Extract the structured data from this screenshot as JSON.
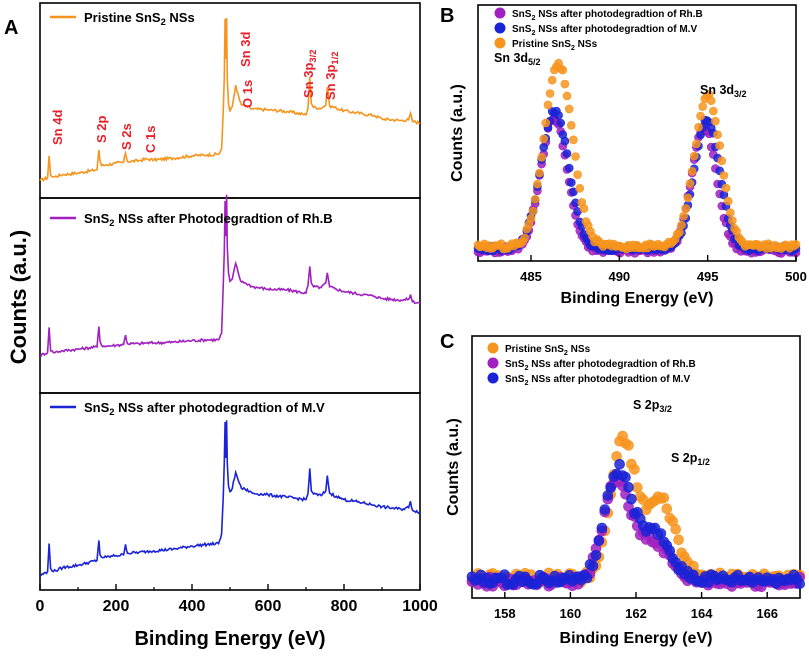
{
  "colors": {
    "pristine": "#f7941d",
    "rhb": "#a020c0",
    "mv": "#1a23d6",
    "label_red": "#e8202a",
    "axis": "#000000"
  },
  "chart_data": [
    {
      "panel": "A",
      "type": "line",
      "title": "",
      "xlabel": "Binding Energy (eV)",
      "ylabel": "Counts (a.u.)",
      "xlim": [
        0,
        1000
      ],
      "xticks": [
        0,
        200,
        400,
        600,
        800,
        1000
      ],
      "grid": false,
      "stacked": true,
      "series": [
        {
          "name": "Pristine SnS2 NSs",
          "legend_main": "Pristine SnS",
          "legend_sub": "2",
          "legend_tail": " NSs",
          "color": "#f7941d",
          "x": [
            0,
            20,
            24,
            28,
            35,
            60,
            100,
            150,
            155,
            158,
            162,
            175,
            200,
            220,
            225,
            230,
            260,
            280,
            300,
            350,
            400,
            440,
            470,
            478,
            482,
            485,
            487,
            489,
            491,
            493,
            496,
            500,
            506,
            515,
            525,
            530,
            540,
            560,
            600,
            650,
            700,
            705,
            710,
            714,
            720,
            740,
            752,
            756,
            762,
            780,
            800,
            850,
            880,
            900,
            950,
            970,
            975,
            980,
            1000
          ],
          "y": [
            0.2,
            0.5,
            3.2,
            0.8,
            0.6,
            0.9,
            1.1,
            1.5,
            3.9,
            2.6,
            2.0,
            2.1,
            2.3,
            2.4,
            3.5,
            2.5,
            2.6,
            2.8,
            2.7,
            2.9,
            3.2,
            3.3,
            3.4,
            4.0,
            8.5,
            12.8,
            19.9,
            15.0,
            20.0,
            12.5,
            9.5,
            8.6,
            9.2,
            11.8,
            10.0,
            9.4,
            9.3,
            8.9,
            8.8,
            8.6,
            8.2,
            9.0,
            12.8,
            9.6,
            9.1,
            9.0,
            9.4,
            11.6,
            9.3,
            9.0,
            8.7,
            8.3,
            8.1,
            7.7,
            7.5,
            7.6,
            8.4,
            7.4,
            7.2
          ]
        },
        {
          "name": "SnS2 NSs after Photodegradtion of Rh.B",
          "legend_main": "SnS",
          "legend_sub": "2",
          "legend_tail": " NSs after Photodegradtion of Rh.B",
          "color": "#a020c0",
          "x": [
            0,
            20,
            24,
            28,
            35,
            60,
            100,
            150,
            155,
            158,
            162,
            175,
            200,
            220,
            225,
            230,
            260,
            280,
            300,
            350,
            400,
            440,
            470,
            478,
            482,
            485,
            487,
            489,
            491,
            493,
            496,
            500,
            506,
            515,
            525,
            530,
            540,
            560,
            600,
            650,
            700,
            705,
            710,
            714,
            720,
            740,
            752,
            756,
            762,
            780,
            800,
            850,
            880,
            900,
            950,
            970,
            975,
            980,
            1000
          ],
          "y": [
            0.2,
            0.6,
            3.8,
            0.8,
            0.6,
            0.8,
            1.0,
            1.3,
            3.9,
            2.0,
            1.5,
            1.4,
            1.5,
            1.6,
            2.8,
            1.7,
            1.7,
            1.8,
            1.8,
            1.9,
            2.1,
            2.2,
            2.2,
            3.0,
            9.0,
            13.5,
            20.0,
            15.5,
            20.8,
            14.0,
            10.8,
            9.7,
            10.0,
            12.0,
            10.2,
            9.6,
            9.5,
            9.0,
            8.7,
            8.6,
            8.2,
            9.1,
            11.6,
            9.5,
            9.0,
            8.9,
            9.5,
            10.8,
            9.0,
            8.7,
            8.4,
            8.0,
            7.8,
            7.5,
            7.3,
            7.4,
            8.0,
            7.1,
            6.9
          ]
        },
        {
          "name": "SnS2 NSs after photodegradtion of M.V",
          "legend_main": "SnS",
          "legend_sub": "2",
          "legend_tail": " NSs after photodegradtion of M.V",
          "color": "#1a23d6",
          "x": [
            0,
            20,
            24,
            28,
            35,
            60,
            100,
            150,
            155,
            158,
            162,
            175,
            200,
            220,
            225,
            230,
            260,
            280,
            300,
            350,
            400,
            440,
            470,
            478,
            482,
            485,
            487,
            489,
            491,
            493,
            496,
            500,
            506,
            515,
            525,
            530,
            540,
            560,
            600,
            650,
            700,
            705,
            710,
            714,
            720,
            740,
            752,
            756,
            762,
            780,
            800,
            850,
            880,
            900,
            950,
            970,
            975,
            980,
            1000
          ],
          "y": [
            0.3,
            0.8,
            4.3,
            1.2,
            0.8,
            1.3,
            1.6,
            2.2,
            4.7,
            2.9,
            2.6,
            2.6,
            2.8,
            2.9,
            4.2,
            3.1,
            3.2,
            3.3,
            3.4,
            3.6,
            4.0,
            4.2,
            4.3,
            5.5,
            10.0,
            14.5,
            19.5,
            15.0,
            19.7,
            14.3,
            11.5,
            10.8,
            11.2,
            13.2,
            11.8,
            11.2,
            11.1,
            10.6,
            10.4,
            10.1,
            9.8,
            10.5,
            13.7,
            10.9,
            10.5,
            10.3,
            10.9,
            12.8,
            10.6,
            10.2,
            9.8,
            9.4,
            9.1,
            8.9,
            8.6,
            8.8,
            9.6,
            8.5,
            8.2
          ]
        }
      ],
      "annotations": [
        {
          "main": "Sn 4d",
          "sub": ""
        },
        {
          "main": "S 2p",
          "sub": ""
        },
        {
          "main": "S 2s",
          "sub": ""
        },
        {
          "main": "C 1s",
          "sub": ""
        },
        {
          "main": "Sn 3d",
          "sub": ""
        },
        {
          "main": "O 1s",
          "sub": ""
        },
        {
          "main": "Sn 3p",
          "sub": "3/2"
        },
        {
          "main": "Sn 3p",
          "sub": "1/2"
        }
      ]
    },
    {
      "panel": "B",
      "type": "scatter",
      "title": "",
      "xlabel": "Binding Energy (eV)",
      "ylabel": "Counts (a.u.)",
      "xlim": [
        482,
        500
      ],
      "xticks": [
        485,
        490,
        495,
        500
      ],
      "grid": false,
      "legend_position": "top-right",
      "series": [
        {
          "name": "SnS2 NSs after photodegradtion of Rh.B",
          "legend_main": "SnS",
          "legend_sub": "2",
          "legend_tail": " NSs after photodegradtion of Rh.B",
          "color": "#a020c0",
          "peaks": [
            {
              "center": 486.3,
              "height": 0.62,
              "width": 0.75
            },
            {
              "center": 494.8,
              "height": 0.58,
              "width": 0.7
            }
          ],
          "baseline": 0.02
        },
        {
          "name": "SnS2 NSs after photodegradtion of M.V",
          "legend_main": "SnS",
          "legend_sub": "2",
          "legend_tail": " NSs after photodegradtion of M.V",
          "color": "#1a23d6",
          "peaks": [
            {
              "center": 486.35,
              "height": 0.64,
              "width": 0.78
            },
            {
              "center": 494.95,
              "height": 0.6,
              "width": 0.72
            }
          ],
          "baseline": 0.03
        },
        {
          "name": "Pristine SnS2 NSs",
          "legend_main": "Pristine SnS",
          "legend_sub": "2",
          "legend_tail": " NSs",
          "color": "#f7941d",
          "peaks": [
            {
              "center": 486.55,
              "height": 0.85,
              "width": 0.8
            },
            {
              "center": 495.0,
              "height": 0.7,
              "width": 0.75
            }
          ],
          "baseline": 0.04
        }
      ],
      "annotations": [
        {
          "main": "Sn 3d",
          "sub": "5/2"
        },
        {
          "main": "Sn 3d",
          "sub": "3/2"
        }
      ]
    },
    {
      "panel": "C",
      "type": "scatter",
      "title": "",
      "xlabel": "Binding Energy (eV)",
      "ylabel": "Counts (a.u.)",
      "xlim": [
        157,
        167
      ],
      "xticks": [
        158,
        160,
        162,
        164,
        166
      ],
      "grid": false,
      "legend_position": "top-left",
      "series": [
        {
          "name": "Pristine SnS2 NSs",
          "legend_main": "Pristine SnS",
          "legend_sub": "2",
          "legend_tail": " NSs",
          "color": "#f7941d",
          "peaks": [
            {
              "center": 161.6,
              "height": 0.66,
              "width": 0.38
            },
            {
              "center": 162.75,
              "height": 0.38,
              "width": 0.45
            }
          ],
          "baseline": 0.06
        },
        {
          "name": "SnS2 NSs after photodegradtion of Rh.B",
          "legend_main": "SnS",
          "legend_sub": "2",
          "legend_tail": " NSs after photodegradtion of Rh.B",
          "color": "#a020c0",
          "peaks": [
            {
              "center": 161.4,
              "height": 0.48,
              "width": 0.4
            },
            {
              "center": 162.5,
              "height": 0.2,
              "width": 0.5
            }
          ],
          "baseline": 0.04
        },
        {
          "name": "SnS2 NSs after photodegradtion of M.V",
          "legend_main": "SnS",
          "legend_sub": "2",
          "legend_tail": " NSs after photodegradtion of M.V",
          "color": "#1a23d6",
          "peaks": [
            {
              "center": 161.45,
              "height": 0.52,
              "width": 0.4
            },
            {
              "center": 162.55,
              "height": 0.22,
              "width": 0.5
            }
          ],
          "baseline": 0.05
        }
      ],
      "annotations": [
        {
          "main": "S 2p",
          "sub": "3/2"
        },
        {
          "main": "S 2p",
          "sub": "1/2"
        }
      ]
    }
  ],
  "panels": {
    "a_letter": "A",
    "b_letter": "B",
    "c_letter": "C"
  }
}
